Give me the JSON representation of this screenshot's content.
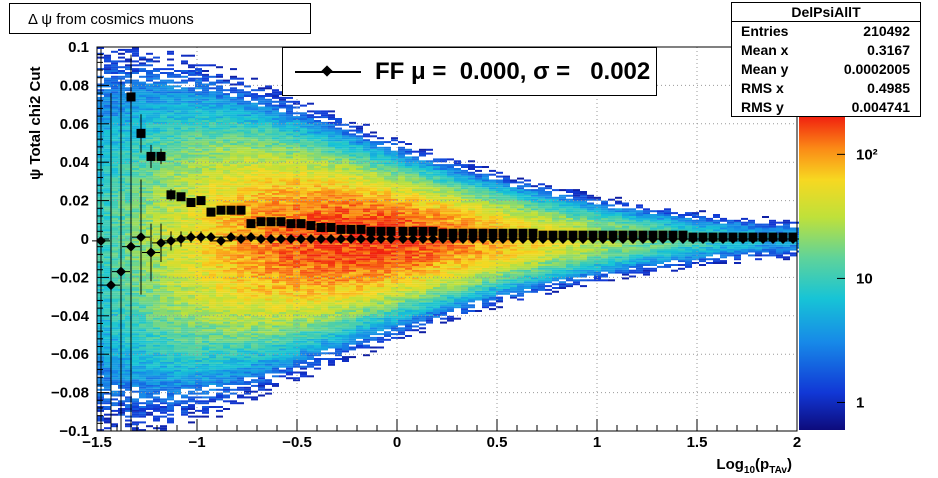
{
  "title": "Δ ψ from cosmics muons",
  "legend": {
    "label": "FF μ =  0.000, σ =   0.002"
  },
  "stats": {
    "name": "DelPsiAllT",
    "rows": [
      {
        "label": "Entries",
        "value": "210492"
      },
      {
        "label": "Mean x",
        "value": "0.3167"
      },
      {
        "label": "Mean y",
        "value": "0.0002005"
      },
      {
        "label": "RMS x",
        "value": "0.4985"
      },
      {
        "label": "RMS y",
        "value": "0.004741"
      }
    ]
  },
  "colors": {
    "markers": "#000000",
    "frame": "#000000",
    "grid": "#9a9a9a"
  },
  "chart_data": {
    "type": "heatmap",
    "title": "Δ ψ from cosmics muons",
    "xlabel": "Log10(pTAv)",
    "ylabel": "ψ  Total chi2 Cut",
    "xlim": [
      -1.5,
      2
    ],
    "ylim": [
      -0.1,
      0.1
    ],
    "grid": true,
    "x_ticks": [
      -1.5,
      -1,
      -0.5,
      0,
      0.5,
      1,
      1.5,
      2
    ],
    "x_tick_labels": [
      "−1.5",
      "−1",
      "−0.5",
      "0",
      "0.5",
      "1",
      "1.5",
      "2"
    ],
    "y_ticks": [
      -0.1,
      -0.08,
      -0.06,
      -0.04,
      -0.02,
      0,
      0.02,
      0.04,
      0.06,
      0.08,
      0.1
    ],
    "y_tick_labels": [
      "−0.1",
      "−0.08",
      "−0.06",
      "−0.04",
      "−0.02",
      "0",
      "0.02",
      "0.04",
      "0.06",
      "0.08",
      "0.1"
    ],
    "colorbar": {
      "scale": "log",
      "range": [
        0.6,
        200
      ],
      "ticks": [
        1,
        10,
        100
      ],
      "tick_labels": [
        "1",
        "10",
        "10²"
      ]
    },
    "profile_rms": {
      "marker": "square",
      "x": [
        -1.33,
        -1.28,
        -1.23,
        -1.18,
        -1.13,
        -1.08,
        -1.03,
        -0.98,
        -0.93,
        -0.88,
        -0.83,
        -0.78,
        -0.73,
        -0.68,
        -0.63,
        -0.58,
        -0.53,
        -0.48,
        -0.43,
        -0.38,
        -0.33,
        -0.28,
        -0.23,
        -0.18,
        -0.13,
        -0.08,
        -0.03,
        0.03,
        0.08,
        0.13,
        0.18,
        0.23,
        0.28,
        0.33,
        0.38,
        0.43,
        0.48,
        0.53,
        0.58,
        0.63,
        0.68,
        0.73,
        0.78,
        0.83,
        0.88,
        0.93,
        0.98,
        1.03,
        1.08,
        1.13,
        1.18,
        1.23,
        1.28,
        1.33,
        1.38,
        1.43,
        1.48,
        1.53,
        1.58,
        1.63,
        1.68,
        1.73,
        1.78,
        1.83,
        1.88,
        1.93,
        1.98
      ],
      "y": [
        0.074,
        0.055,
        0.043,
        0.043,
        0.023,
        0.022,
        0.019,
        0.02,
        0.014,
        0.015,
        0.015,
        0.015,
        0.008,
        0.009,
        0.009,
        0.009,
        0.008,
        0.008,
        0.007,
        0.006,
        0.006,
        0.005,
        0.005,
        0.005,
        0.004,
        0.004,
        0.004,
        0.004,
        0.004,
        0.004,
        0.004,
        0.003,
        0.003,
        0.003,
        0.003,
        0.003,
        0.003,
        0.003,
        0.003,
        0.003,
        0.003,
        0.002,
        0.002,
        0.002,
        0.002,
        0.002,
        0.002,
        0.002,
        0.002,
        0.002,
        0.002,
        0.002,
        0.002,
        0.002,
        0.002,
        0.002,
        0.001,
        0.001,
        0.001,
        0.001,
        0.001,
        0.001,
        0.001,
        0.001,
        0.001,
        0.001,
        0.001
      ],
      "y_err": [
        0.016,
        0.01,
        0.006,
        0.004,
        0.003,
        0.002,
        0.002,
        0.002,
        0.001,
        0.001,
        0.001,
        0.001,
        0.001,
        0.001,
        0.001,
        0.001,
        0.001,
        0.0,
        0.0,
        0.0,
        0.0,
        0.0,
        0.0,
        0.0,
        0.0,
        0.0,
        0.0,
        0.0,
        0.0,
        0.0,
        0.0,
        0.0,
        0.0,
        0.0,
        0.0,
        0.0,
        0.0,
        0.0,
        0.0,
        0.0,
        0.0,
        0.0,
        0.0,
        0.0,
        0.0,
        0.0,
        0.0,
        0.0,
        0.0,
        0.0,
        0.0,
        0.0,
        0.0,
        0.0,
        0.0,
        0.0,
        0.0,
        0.0,
        0.0,
        0.0,
        0.0,
        0.0,
        0.0,
        0.0,
        0.0,
        0.0,
        0.0
      ]
    },
    "profile_mean": {
      "marker": "diamond",
      "x": [
        -1.48,
        -1.43,
        -1.38,
        -1.33,
        -1.28,
        -1.23,
        -1.18,
        -1.13,
        -1.08,
        -1.03,
        -0.98,
        -0.93,
        -0.88,
        -0.83,
        -0.78,
        -0.73,
        -0.68,
        -0.63,
        -0.58,
        -0.53,
        -0.48,
        -0.43,
        -0.38,
        -0.33,
        -0.28,
        -0.23,
        -0.18,
        -0.13,
        -0.08,
        -0.03,
        0.03,
        0.08,
        0.13,
        0.18,
        0.23,
        0.28,
        0.33,
        0.38,
        0.43,
        0.48,
        0.53,
        0.58,
        0.63,
        0.68,
        0.73,
        0.78,
        0.83,
        0.88,
        0.93,
        0.98,
        1.03,
        1.08,
        1.13,
        1.18,
        1.23,
        1.28,
        1.33,
        1.38,
        1.43,
        1.48,
        1.53,
        1.58,
        1.63,
        1.68,
        1.73,
        1.78,
        1.83,
        1.88,
        1.93,
        1.98
      ],
      "y": [
        -0.001,
        -0.024,
        -0.017,
        -0.004,
        0.001,
        -0.007,
        -0.002,
        -0.001,
        0.0,
        0.001,
        0.001,
        0.001,
        -0.001,
        0.001,
        0.0,
        0.001,
        0.0,
        0.0,
        0.0,
        0.0,
        0.0,
        0.0,
        0.0,
        0.0,
        0.0,
        0.0,
        0.0,
        0.0,
        0.0,
        0.0,
        0.0,
        0.0,
        0.0,
        0.0,
        0.0,
        0.0,
        0.0,
        0.0,
        0.0,
        0.0,
        0.0,
        0.0,
        0.0,
        0.0,
        0.0,
        0.0,
        0.0,
        0.0,
        0.0,
        0.0,
        0.0,
        0.0,
        0.0,
        0.0,
        0.0,
        0.0,
        0.0,
        0.0,
        0.0,
        0.0,
        0.0,
        0.0,
        0.0,
        0.0,
        0.0,
        0.0,
        0.0,
        0.0,
        0.0,
        0.0
      ],
      "y_err": [
        0.1,
        0.1,
        0.1,
        0.1,
        0.03,
        0.015,
        0.01,
        0.005,
        0.004,
        0.003,
        0.003,
        0.002,
        0.002,
        0.002,
        0.002,
        0.001,
        0.001,
        0.001,
        0.001,
        0.001,
        0.001,
        0.0,
        0.0,
        0.0,
        0.0,
        0.0,
        0.0,
        0.0,
        0.0,
        0.0,
        0.0,
        0.0,
        0.0,
        0.0,
        0.0,
        0.0,
        0.0,
        0.0,
        0.0,
        0.0,
        0.0,
        0.0,
        0.0,
        0.0,
        0.0,
        0.0,
        0.0,
        0.0,
        0.0,
        0.0,
        0.0,
        0.0,
        0.0,
        0.0,
        0.0,
        0.0,
        0.0,
        0.0,
        0.0,
        0.0,
        0.0,
        0.0,
        0.0,
        0.0,
        0.0,
        0.0,
        0.0,
        0.0,
        0.0,
        0.0
      ]
    }
  }
}
